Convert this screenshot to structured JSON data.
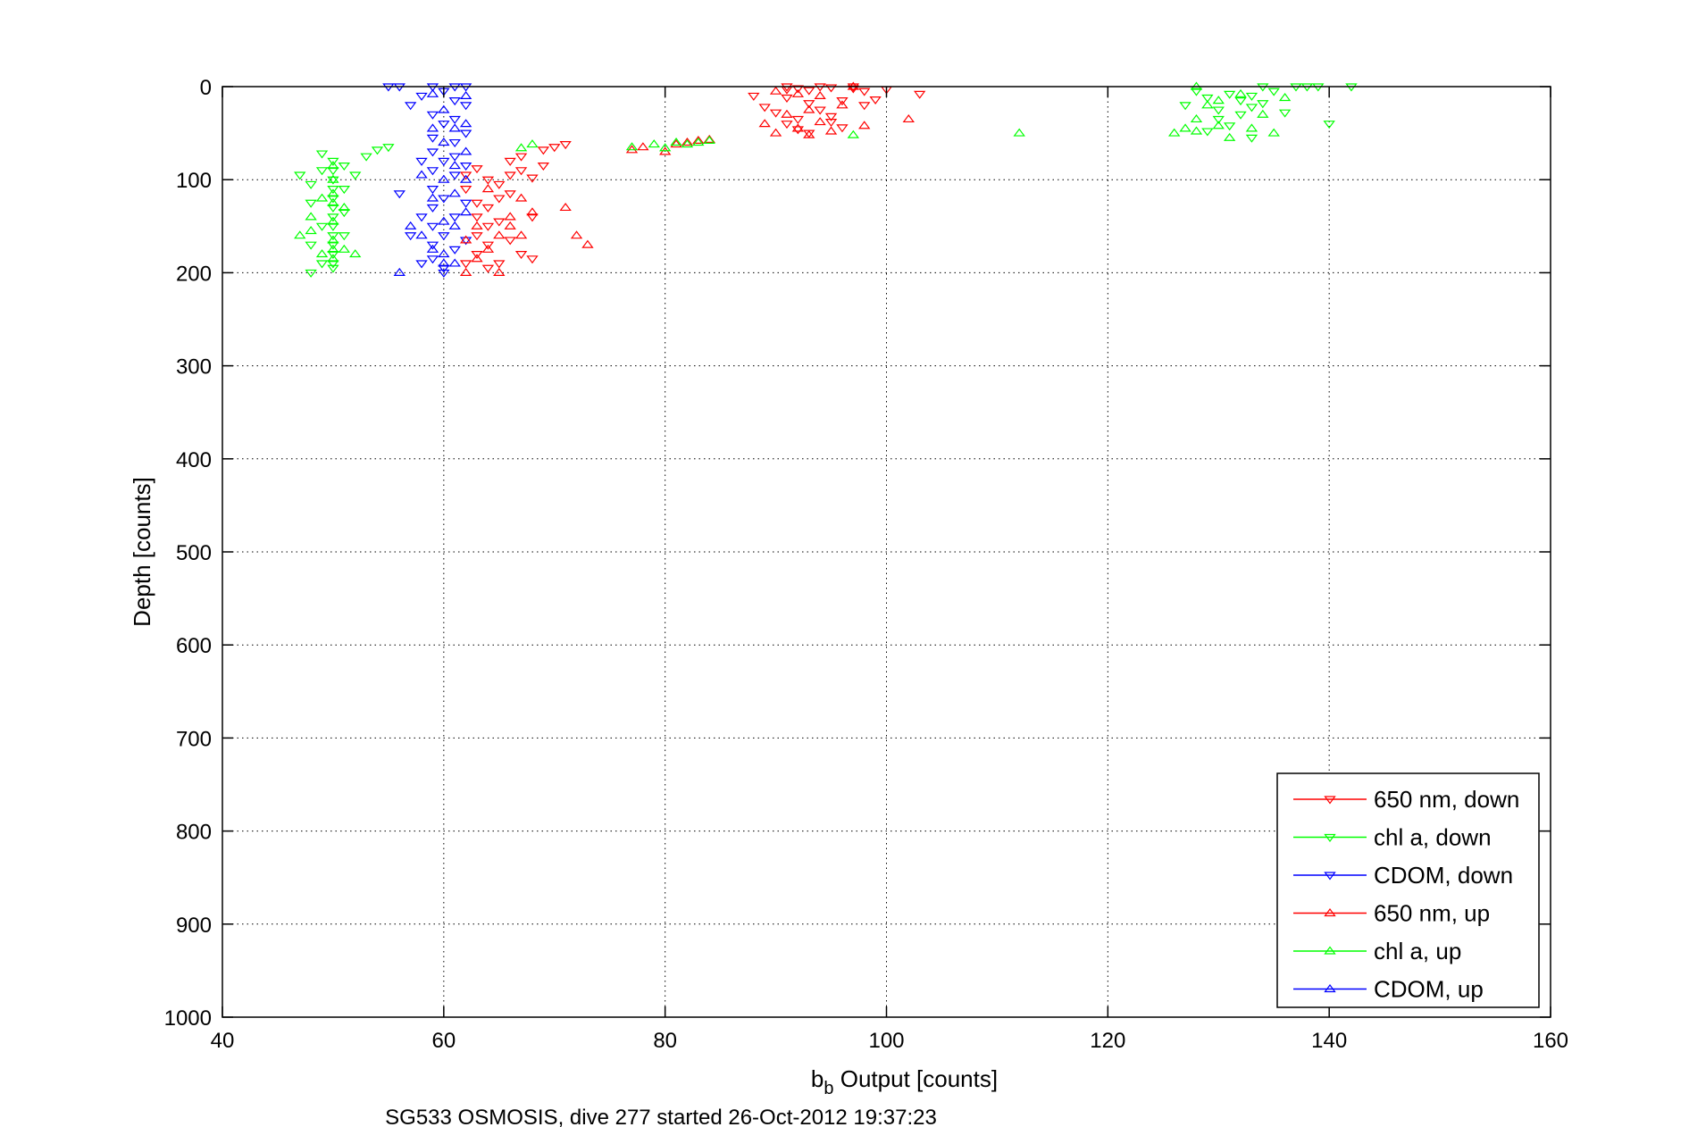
{
  "chart_data": {
    "type": "scatter",
    "title": "",
    "xlabel_main": "b",
    "xlabel_sub": "b",
    "xlabel_rest": " Output [counts]",
    "ylabel": "Depth [counts]",
    "caption": "SG533 OSMOSIS, dive 277 started 26-Oct-2012 19:37:23",
    "xlim": [
      40,
      160
    ],
    "ylim": [
      0,
      1000
    ],
    "y_reversed": true,
    "grid": true,
    "legend_position": "bottom-right",
    "x_ticks": [
      40,
      60,
      80,
      100,
      120,
      140,
      160
    ],
    "x_tick_labels": [
      "40",
      "60",
      "80",
      "100",
      "120",
      "140",
      "160"
    ],
    "y_ticks": [
      0,
      100,
      200,
      300,
      400,
      500,
      600,
      700,
      800,
      900,
      1000
    ],
    "y_tick_labels": [
      "0",
      "100",
      "200",
      "300",
      "400",
      "500",
      "600",
      "700",
      "800",
      "900",
      "1000"
    ],
    "series": [
      {
        "name": "650 nm, down",
        "color": "#ff0000",
        "marker": "triangle-down",
        "points": [
          [
            91,
            0
          ],
          [
            91,
            3
          ],
          [
            92,
            2
          ],
          [
            93,
            4
          ],
          [
            94,
            0
          ],
          [
            95,
            1
          ],
          [
            97,
            0
          ],
          [
            97,
            2
          ],
          [
            98,
            5
          ],
          [
            100,
            3
          ],
          [
            103,
            8
          ],
          [
            88,
            10
          ],
          [
            89,
            22
          ],
          [
            90,
            28
          ],
          [
            91,
            12
          ],
          [
            92,
            35
          ],
          [
            93,
            18
          ],
          [
            94,
            25
          ],
          [
            95,
            32
          ],
          [
            96,
            15
          ],
          [
            98,
            20
          ],
          [
            99,
            14
          ],
          [
            91,
            40
          ],
          [
            92,
            46
          ],
          [
            93,
            50
          ],
          [
            95,
            38
          ],
          [
            96,
            44
          ],
          [
            62,
            95
          ],
          [
            62,
            110
          ],
          [
            63,
            88
          ],
          [
            63,
            125
          ],
          [
            63,
            140
          ],
          [
            63,
            160
          ],
          [
            63,
            180
          ],
          [
            64,
            100
          ],
          [
            64,
            130
          ],
          [
            64,
            170
          ],
          [
            64,
            195
          ],
          [
            65,
            105
          ],
          [
            65,
            120
          ],
          [
            65,
            145
          ],
          [
            65,
            190
          ],
          [
            66,
            80
          ],
          [
            66,
            95
          ],
          [
            66,
            115
          ],
          [
            66,
            165
          ],
          [
            67,
            90
          ],
          [
            67,
            75
          ],
          [
            68,
            98
          ],
          [
            68,
            140
          ],
          [
            69,
            68
          ],
          [
            69,
            85
          ],
          [
            70,
            65
          ],
          [
            71,
            62
          ],
          [
            67,
            180
          ],
          [
            68,
            185
          ],
          [
            62,
            190
          ],
          [
            64,
            150
          ]
        ]
      },
      {
        "name": "chl a, down",
        "color": "#00ff00",
        "marker": "triangle-down",
        "points": [
          [
            47,
            95
          ],
          [
            48,
            105
          ],
          [
            48,
            125
          ],
          [
            48,
            170
          ],
          [
            48,
            200
          ],
          [
            49,
            72
          ],
          [
            49,
            90
          ],
          [
            49,
            150
          ],
          [
            49,
            190
          ],
          [
            50,
            80
          ],
          [
            50,
            90
          ],
          [
            50,
            100
          ],
          [
            50,
            110
          ],
          [
            50,
            120
          ],
          [
            50,
            130
          ],
          [
            50,
            140
          ],
          [
            50,
            150
          ],
          [
            50,
            160
          ],
          [
            50,
            170
          ],
          [
            50,
            180
          ],
          [
            50,
            190
          ],
          [
            50,
            195
          ],
          [
            51,
            85
          ],
          [
            51,
            110
          ],
          [
            51,
            135
          ],
          [
            51,
            160
          ],
          [
            52,
            95
          ],
          [
            53,
            75
          ],
          [
            54,
            68
          ],
          [
            55,
            65
          ],
          [
            127,
            20
          ],
          [
            128,
            5
          ],
          [
            129,
            12
          ],
          [
            130,
            25
          ],
          [
            131,
            8
          ],
          [
            132,
            15
          ],
          [
            132,
            30
          ],
          [
            133,
            10
          ],
          [
            133,
            22
          ],
          [
            134,
            0
          ],
          [
            134,
            18
          ],
          [
            135,
            5
          ],
          [
            136,
            28
          ],
          [
            137,
            0
          ],
          [
            138,
            0
          ],
          [
            139,
            0
          ],
          [
            142,
            0
          ],
          [
            140,
            40
          ],
          [
            131,
            42
          ],
          [
            130,
            35
          ],
          [
            129,
            48
          ],
          [
            133,
            55
          ]
        ]
      },
      {
        "name": "CDOM, down",
        "color": "#0000ff",
        "marker": "triangle-down",
        "points": [
          [
            55,
            0
          ],
          [
            56,
            0
          ],
          [
            57,
            20
          ],
          [
            58,
            10
          ],
          [
            59,
            0
          ],
          [
            59,
            30
          ],
          [
            59,
            55
          ],
          [
            59,
            70
          ],
          [
            59,
            90
          ],
          [
            59,
            110
          ],
          [
            59,
            130
          ],
          [
            59,
            150
          ],
          [
            59,
            170
          ],
          [
            59,
            185
          ],
          [
            60,
            5
          ],
          [
            60,
            40
          ],
          [
            60,
            80
          ],
          [
            60,
            120
          ],
          [
            60,
            160
          ],
          [
            60,
            200
          ],
          [
            61,
            0
          ],
          [
            61,
            15
          ],
          [
            61,
            35
          ],
          [
            61,
            60
          ],
          [
            61,
            75
          ],
          [
            61,
            95
          ],
          [
            61,
            140
          ],
          [
            61,
            175
          ],
          [
            62,
            0
          ],
          [
            62,
            20
          ],
          [
            62,
            50
          ],
          [
            62,
            85
          ],
          [
            62,
            125
          ],
          [
            62,
            165
          ],
          [
            58,
            80
          ],
          [
            58,
            140
          ],
          [
            58,
            190
          ],
          [
            57,
            160
          ],
          [
            56,
            115
          ],
          [
            60,
            195
          ]
        ]
      },
      {
        "name": "650 nm, up",
        "color": "#ff0000",
        "marker": "triangle-up",
        "points": [
          [
            90,
            5
          ],
          [
            91,
            30
          ],
          [
            92,
            45
          ],
          [
            93,
            25
          ],
          [
            94,
            10
          ],
          [
            95,
            48
          ],
          [
            96,
            20
          ],
          [
            97,
            0
          ],
          [
            98,
            42
          ],
          [
            102,
            35
          ],
          [
            89,
            40
          ],
          [
            90,
            50
          ],
          [
            93,
            52
          ],
          [
            92,
            8
          ],
          [
            94,
            38
          ],
          [
            77,
            68
          ],
          [
            78,
            65
          ],
          [
            80,
            70
          ],
          [
            81,
            62
          ],
          [
            82,
            60
          ],
          [
            83,
            58
          ],
          [
            84,
            57
          ],
          [
            73,
            170
          ],
          [
            72,
            160
          ],
          [
            71,
            130
          ],
          [
            63,
            185
          ],
          [
            64,
            175
          ],
          [
            65,
            160
          ],
          [
            65,
            200
          ],
          [
            66,
            140
          ],
          [
            66,
            150
          ],
          [
            67,
            120
          ],
          [
            67,
            160
          ],
          [
            62,
            165
          ],
          [
            62,
            200
          ],
          [
            63,
            150
          ],
          [
            64,
            110
          ],
          [
            68,
            135
          ]
        ]
      },
      {
        "name": "chl a, up",
        "color": "#00ff00",
        "marker": "triangle-up",
        "points": [
          [
            47,
            160
          ],
          [
            48,
            140
          ],
          [
            48,
            155
          ],
          [
            49,
            120
          ],
          [
            49,
            180
          ],
          [
            50,
            85
          ],
          [
            50,
            100
          ],
          [
            50,
            115
          ],
          [
            50,
            125
          ],
          [
            50,
            145
          ],
          [
            50,
            165
          ],
          [
            50,
            175
          ],
          [
            50,
            185
          ],
          [
            51,
            130
          ],
          [
            51,
            175
          ],
          [
            52,
            180
          ],
          [
            77,
            65
          ],
          [
            79,
            62
          ],
          [
            80,
            66
          ],
          [
            81,
            60
          ],
          [
            82,
            62
          ],
          [
            83,
            60
          ],
          [
            84,
            58
          ],
          [
            67,
            66
          ],
          [
            68,
            62
          ],
          [
            112,
            50
          ],
          [
            97,
            52
          ],
          [
            126,
            50
          ],
          [
            127,
            45
          ],
          [
            128,
            0
          ],
          [
            128,
            35
          ],
          [
            129,
            20
          ],
          [
            130,
            42
          ],
          [
            131,
            55
          ],
          [
            132,
            8
          ],
          [
            133,
            45
          ],
          [
            134,
            30
          ],
          [
            135,
            50
          ],
          [
            136,
            12
          ],
          [
            128,
            48
          ],
          [
            130,
            15
          ]
        ]
      },
      {
        "name": "CDOM, up",
        "color": "#0000ff",
        "marker": "triangle-up",
        "points": [
          [
            56,
            200
          ],
          [
            57,
            150
          ],
          [
            58,
            160
          ],
          [
            58,
            95
          ],
          [
            59,
            45
          ],
          [
            59,
            120
          ],
          [
            59,
            175
          ],
          [
            60,
            25
          ],
          [
            60,
            60
          ],
          [
            60,
            100
          ],
          [
            60,
            145
          ],
          [
            60,
            190
          ],
          [
            61,
            45
          ],
          [
            61,
            85
          ],
          [
            61,
            115
          ],
          [
            61,
            150
          ],
          [
            61,
            190
          ],
          [
            62,
            10
          ],
          [
            62,
            40
          ],
          [
            62,
            70
          ],
          [
            62,
            100
          ],
          [
            62,
            135
          ],
          [
            59,
            8
          ],
          [
            60,
            180
          ]
        ]
      }
    ]
  }
}
